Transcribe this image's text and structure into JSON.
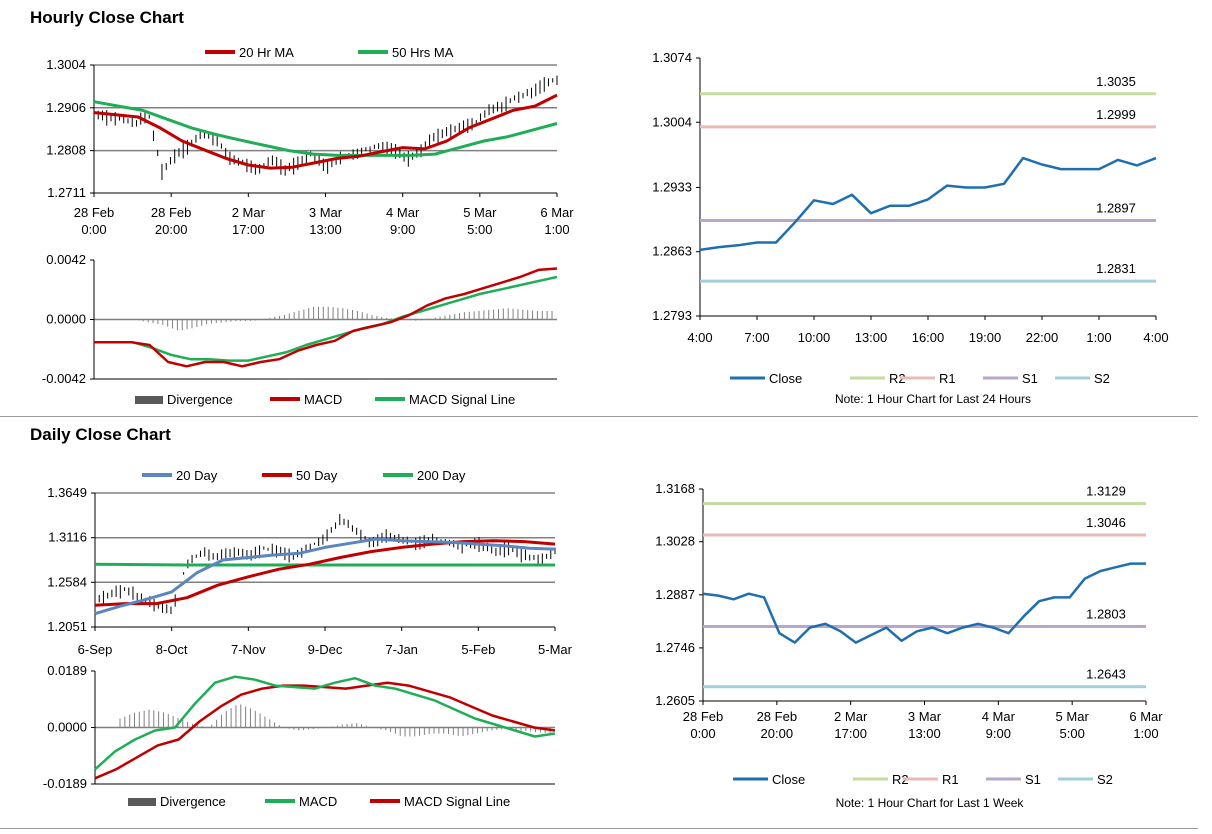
{
  "sections": {
    "hourly_title": "Hourly Close Chart",
    "daily_title": "Daily Close Chart"
  },
  "colors": {
    "ma20_hr": "#c00000",
    "ma50_hr": "#1fae56",
    "ma20_day": "#5b86c0",
    "ma50_day": "#c00000",
    "ma200_day": "#1fae56",
    "close": "#1f6fb0",
    "r2": "#c5dba0",
    "r1": "#ebb9b8",
    "s1": "#b8a6cc",
    "s2": "#a3cfdc",
    "divergence": "#808080",
    "grid": "#808080"
  },
  "chart_data": [
    {
      "id": "hourly_price",
      "type": "line",
      "legend": [
        "20 Hr MA",
        "50 Hrs MA"
      ],
      "yticks": [
        "1.3004",
        "1.2906",
        "1.2808",
        "1.2711"
      ],
      "ylim": [
        1.2711,
        1.3004
      ],
      "xticks": [
        [
          "28 Feb",
          "0:00"
        ],
        [
          "28 Feb",
          "20:00"
        ],
        [
          "2 Mar",
          "17:00"
        ],
        [
          "3 Mar",
          "13:00"
        ],
        [
          "4 Mar",
          "9:00"
        ],
        [
          "5 Mar",
          "5:00"
        ],
        [
          "6 Mar",
          "1:00"
        ]
      ],
      "series": [
        {
          "name": "Price",
          "values": [
            1.2895,
            1.2885,
            1.288,
            1.287,
            1.289,
            1.276,
            1.28,
            1.282,
            1.285,
            1.283,
            1.279,
            1.278,
            1.276,
            1.279,
            1.2765,
            1.278,
            1.28,
            1.277,
            1.279,
            1.28,
            1.281,
            1.282,
            1.281,
            1.279,
            1.281,
            1.284,
            1.285,
            1.286,
            1.287,
            1.29,
            1.291,
            1.293,
            1.294,
            1.296,
            1.297
          ]
        },
        {
          "name": "20 Hr MA",
          "values": [
            1.2895,
            1.289,
            1.2885,
            1.286,
            1.283,
            1.281,
            1.279,
            1.2775,
            1.2768,
            1.277,
            1.278,
            1.279,
            1.2795,
            1.2805,
            1.2815,
            1.2812,
            1.283,
            1.286,
            1.288,
            1.29,
            1.291,
            1.2935
          ]
        },
        {
          "name": "50 Hrs MA",
          "values": [
            1.292,
            1.291,
            1.29,
            1.288,
            1.286,
            1.2845,
            1.2832,
            1.282,
            1.2808,
            1.28,
            1.2797,
            1.2797,
            1.2797,
            1.2797,
            1.28,
            1.2815,
            1.283,
            1.284,
            1.2855,
            1.287
          ]
        }
      ]
    },
    {
      "id": "hourly_macd",
      "type": "line",
      "legend": [
        "Divergence",
        "MACD",
        "MACD Signal Line"
      ],
      "yticks": [
        "0.0042",
        "0.0000",
        "-0.0042"
      ],
      "ylim": [
        -0.0042,
        0.0042
      ],
      "series": [
        {
          "name": "MACD",
          "values": [
            -0.0016,
            -0.0016,
            -0.0016,
            -0.0018,
            -0.003,
            -0.0033,
            -0.003,
            -0.003,
            -0.0033,
            -0.003,
            -0.0028,
            -0.0022,
            -0.0018,
            -0.0015,
            -0.0008,
            -0.0005,
            -0.0002,
            0.0003,
            0.001,
            0.0015,
            0.0018,
            0.0022,
            0.0026,
            0.003,
            0.0035,
            0.0036
          ]
        },
        {
          "name": "MACD Signal Line",
          "values": [
            -0.0016,
            -0.0016,
            -0.0016,
            -0.002,
            -0.0025,
            -0.0028,
            -0.0028,
            -0.0029,
            -0.0029,
            -0.0026,
            -0.0023,
            -0.0018,
            -0.0014,
            -0.001,
            -0.0006,
            -0.0003,
            0.0002,
            0.0006,
            0.001,
            0.0014,
            0.0018,
            0.0021,
            0.0024,
            0.0027,
            0.003
          ]
        },
        {
          "name": "Divergence",
          "values": [
            0.0,
            0.0,
            -0.0002,
            -0.0004,
            -0.0008,
            -0.0006,
            -0.0003,
            -0.0002,
            -0.0001,
            -0.0001,
            0.0001,
            0.0003,
            0.0006,
            0.0009,
            0.0009,
            0.0008,
            0.0006,
            0.0003,
            0.0001,
            0.0,
            -0.0001,
            0.0001,
            0.0003,
            0.0005,
            0.0006,
            0.0007,
            0.0008,
            0.0007,
            0.0006,
            0.0006
          ]
        }
      ]
    },
    {
      "id": "hourly_close_levels",
      "type": "line",
      "yticks": [
        "1.3074",
        "1.3004",
        "1.2933",
        "1.2863",
        "1.2793"
      ],
      "ylim": [
        1.2793,
        1.3074
      ],
      "xticks": [
        "4:00",
        "7:00",
        "10:00",
        "13:00",
        "16:00",
        "19:00",
        "22:00",
        "1:00",
        "4:00"
      ],
      "levels": [
        {
          "name": "R2",
          "value": 1.3035,
          "label": "1.3035"
        },
        {
          "name": "R1",
          "value": 1.2999,
          "label": "1.2999"
        },
        {
          "name": "S1",
          "value": 1.2897,
          "label": "1.2897"
        },
        {
          "name": "S2",
          "value": 1.2831,
          "label": "1.2831"
        }
      ],
      "series": [
        {
          "name": "Close",
          "values": [
            1.2865,
            1.2868,
            1.287,
            1.2873,
            1.2873,
            1.2895,
            1.2919,
            1.2915,
            1.2925,
            1.2905,
            1.2913,
            1.2913,
            1.292,
            1.2935,
            1.2933,
            1.2933,
            1.2937,
            1.2965,
            1.2958,
            1.2953,
            1.2953,
            1.2953,
            1.2963,
            1.2957,
            1.2965
          ]
        }
      ],
      "legend": [
        "Close",
        "R2",
        "R1",
        "S1",
        "S2"
      ],
      "note": "Note: 1 Hour Chart for Last 24 Hours"
    },
    {
      "id": "daily_price",
      "type": "line",
      "legend": [
        "20 Day",
        "50 Day",
        "200 Day"
      ],
      "yticks": [
        "1.3649",
        "1.3116",
        "1.2584",
        "1.2051"
      ],
      "ylim": [
        1.2051,
        1.3649
      ],
      "xticks": [
        "6-Sep",
        "8-Oct",
        "7-Nov",
        "9-Dec",
        "7-Jan",
        "5-Feb",
        "5-Mar"
      ],
      "series": [
        {
          "name": "Price",
          "values": [
            1.235,
            1.245,
            1.25,
            1.24,
            1.23,
            1.225,
            1.28,
            1.295,
            1.288,
            1.295,
            1.29,
            1.298,
            1.295,
            1.29,
            1.3,
            1.31,
            1.335,
            1.32,
            1.305,
            1.315,
            1.31,
            1.305,
            1.31,
            1.305,
            1.3,
            1.305,
            1.295,
            1.3,
            1.29,
            1.285,
            1.295
          ]
        },
        {
          "name": "20 Day",
          "values": [
            1.221,
            1.23,
            1.238,
            1.247,
            1.27,
            1.285,
            1.288,
            1.291,
            1.293,
            1.3,
            1.305,
            1.31,
            1.308,
            1.307,
            1.306,
            1.304,
            1.302,
            1.299,
            1.298
          ]
        },
        {
          "name": "50 Day",
          "values": [
            1.231,
            1.233,
            1.233,
            1.24,
            1.255,
            1.265,
            1.274,
            1.28,
            1.288,
            1.295,
            1.3,
            1.304,
            1.307,
            1.308,
            1.307,
            1.304
          ]
        },
        {
          "name": "200 Day",
          "values": [
            1.28,
            1.2795,
            1.279,
            1.279,
            1.279,
            1.279,
            1.279,
            1.279,
            1.279,
            1.279,
            1.279
          ]
        }
      ]
    },
    {
      "id": "daily_macd",
      "type": "line",
      "legend": [
        "Divergence",
        "MACD",
        "MACD Signal Line"
      ],
      "yticks": [
        "0.0189",
        "0.0000",
        "-0.0189"
      ],
      "ylim": [
        -0.0189,
        0.0189
      ],
      "series": [
        {
          "name": "MACD",
          "values": [
            -0.014,
            -0.008,
            -0.004,
            -0.001,
            0.0,
            0.008,
            0.015,
            0.017,
            0.016,
            0.014,
            0.0135,
            0.013,
            0.015,
            0.0165,
            0.014,
            0.013,
            0.011,
            0.009,
            0.006,
            0.003,
            0.001,
            -0.001,
            -0.003,
            -0.002
          ]
        },
        {
          "name": "MACD Signal Line",
          "values": [
            -0.017,
            -0.014,
            -0.01,
            -0.006,
            -0.004,
            0.002,
            0.007,
            0.011,
            0.013,
            0.014,
            0.014,
            0.0135,
            0.013,
            0.014,
            0.015,
            0.014,
            0.012,
            0.01,
            0.007,
            0.004,
            0.002,
            0.0,
            -0.001
          ]
        },
        {
          "name": "Divergence",
          "values": [
            0.003,
            0.005,
            0.006,
            0.005,
            0.003,
            0.001,
            0.0,
            0.005,
            0.008,
            0.006,
            0.003,
            0.0,
            -0.001,
            -0.0005,
            0.0,
            0.001,
            0.0015,
            0.0,
            -0.001,
            -0.003,
            -0.003,
            -0.002,
            -0.002,
            -0.003,
            -0.002,
            -0.001,
            -0.0005,
            -0.001,
            -0.0015,
            -0.002
          ]
        }
      ]
    },
    {
      "id": "weekly_close_levels",
      "type": "line",
      "yticks": [
        "1.3168",
        "1.3028",
        "1.2887",
        "1.2746",
        "1.2605"
      ],
      "ylim": [
        1.2605,
        1.3168
      ],
      "xticks": [
        [
          "28 Feb",
          "0:00"
        ],
        [
          "28 Feb",
          "20:00"
        ],
        [
          "2 Mar",
          "17:00"
        ],
        [
          "3 Mar",
          "13:00"
        ],
        [
          "4 Mar",
          "9:00"
        ],
        [
          "5 Mar",
          "5:00"
        ],
        [
          "6 Mar",
          "1:00"
        ]
      ],
      "levels": [
        {
          "name": "R2",
          "value": 1.3129,
          "label": "1.3129"
        },
        {
          "name": "R1",
          "value": 1.3046,
          "label": "1.3046"
        },
        {
          "name": "S1",
          "value": 1.2803,
          "label": "1.2803"
        },
        {
          "name": "S2",
          "value": 1.2643,
          "label": "1.2643"
        }
      ],
      "series": [
        {
          "name": "Close",
          "values": [
            1.289,
            1.2885,
            1.2875,
            1.289,
            1.288,
            1.2785,
            1.276,
            1.28,
            1.281,
            1.279,
            1.276,
            1.278,
            1.28,
            1.2765,
            1.279,
            1.28,
            1.2785,
            1.28,
            1.281,
            1.28,
            1.2785,
            1.283,
            1.287,
            1.288,
            1.288,
            1.293,
            1.295,
            1.296,
            1.297,
            1.297
          ]
        }
      ],
      "legend": [
        "Close",
        "R2",
        "R1",
        "S1",
        "S2"
      ],
      "note": "Note: 1 Hour Chart for Last 1 Week"
    }
  ]
}
